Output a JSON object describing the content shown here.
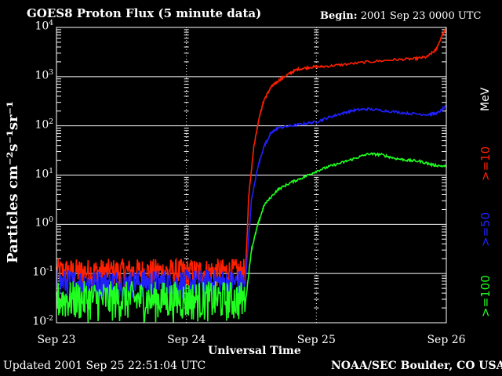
{
  "header": {
    "title": "GOES8 Proton Flux (5 minute data)",
    "begin_label": "Begin:",
    "begin_value": "2001 Sep 23 0000 UTC"
  },
  "footer": {
    "updated_label": "Updated",
    "updated_value": "2001 Sep 25 22:51:04 UTC",
    "credit": "NOAA/SEC Boulder, CO USA"
  },
  "legend": {
    "units": "MeV"
  },
  "chart_data": {
    "type": "line",
    "title": "GOES8 Proton Flux (5 minute data)",
    "xlabel": "Universal Time",
    "ylabel": "Particles cm⁻²s⁻¹sr⁻¹",
    "x_units": "days since 2001 Sep 23 0000 UTC",
    "xlim": [
      0,
      3
    ],
    "x_ticks": [
      {
        "value": 0,
        "label": "Sep 23"
      },
      {
        "value": 1,
        "label": "Sep 24"
      },
      {
        "value": 2,
        "label": "Sep 25"
      },
      {
        "value": 3,
        "label": "Sep 26"
      }
    ],
    "y_scale": "log",
    "ylim": [
      0.01,
      10000
    ],
    "y_ticks": [
      {
        "value": 0.01,
        "base": "10",
        "exp": "-2"
      },
      {
        "value": 0.1,
        "base": "10",
        "exp": "-1"
      },
      {
        "value": 1,
        "base": "10",
        "exp": "0"
      },
      {
        "value": 10,
        "base": "10",
        "exp": "1"
      },
      {
        "value": 100,
        "base": "10",
        "exp": "2"
      },
      {
        "value": 1000,
        "base": "10",
        "exp": "3"
      },
      {
        "value": 10000,
        "base": "10",
        "exp": "4"
      }
    ],
    "grid": true,
    "series": [
      {
        "name": ">=10",
        "color": "#ff2000",
        "noise_floor": {
          "x_range": [
            0,
            1.45
          ],
          "low": 0.05,
          "high": 0.2
        },
        "x": [
          1.45,
          1.48,
          1.52,
          1.56,
          1.6,
          1.65,
          1.7,
          1.78,
          1.85,
          1.95,
          2.05,
          2.2,
          2.4,
          2.6,
          2.75,
          2.85,
          2.92,
          2.97,
          3.0
        ],
        "values": [
          0.05,
          4,
          40,
          150,
          350,
          600,
          800,
          1100,
          1400,
          1550,
          1600,
          1750,
          2000,
          2200,
          2300,
          2500,
          3500,
          7000,
          9500
        ]
      },
      {
        "name": ">=50",
        "color": "#2020ff",
        "noise_floor": {
          "x_range": [
            0,
            1.45
          ],
          "low": 0.03,
          "high": 0.12
        },
        "x": [
          1.45,
          1.5,
          1.55,
          1.6,
          1.65,
          1.7,
          1.8,
          1.9,
          2.0,
          2.1,
          2.2,
          2.3,
          2.4,
          2.55,
          2.7,
          2.85,
          2.93,
          3.0
        ],
        "values": [
          0.05,
          3,
          15,
          40,
          70,
          90,
          100,
          110,
          120,
          150,
          180,
          210,
          220,
          200,
          180,
          170,
          180,
          250
        ]
      },
      {
        "name": ">=100",
        "color": "#20ff20",
        "noise_floor": {
          "x_range": [
            0,
            1.45
          ],
          "low": 0.01,
          "high": 0.07
        },
        "x": [
          1.45,
          1.5,
          1.55,
          1.6,
          1.7,
          1.8,
          1.9,
          2.0,
          2.1,
          2.2,
          2.3,
          2.4,
          2.5,
          2.6,
          2.7,
          2.8,
          2.9,
          3.0
        ],
        "values": [
          0.02,
          0.3,
          1,
          2.5,
          5,
          7,
          9,
          12,
          15,
          18,
          22,
          27,
          26,
          22,
          20,
          19,
          16,
          15
        ]
      }
    ]
  }
}
